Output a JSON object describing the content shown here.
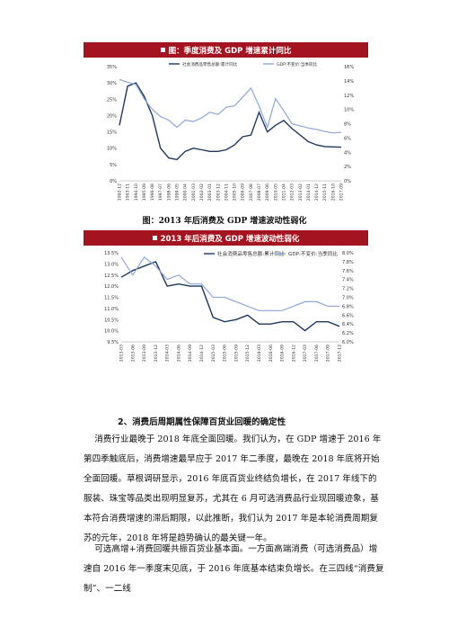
{
  "chart_data": [
    {
      "type": "line",
      "title": "图：季度消费及 GDP 增速累计同比",
      "x": [
        "1992-12",
        "1993-11",
        "1994-10",
        "1995-09",
        "1996-08",
        "1997-07",
        "1998-06",
        "1999-05",
        "2000-04",
        "2001-03",
        "2002-02",
        "2003-01",
        "2003-12",
        "2004-11",
        "2005-10",
        "2006-09",
        "2007-08",
        "2008-07",
        "2009-06",
        "2010-05",
        "2011-04",
        "2012-03",
        "2013-02",
        "2014-01",
        "2014-12",
        "2015-11",
        "2016-10",
        "2017-09"
      ],
      "x_ticks": [
        "1992-12",
        "1993-11",
        "1994-10",
        "1995-09",
        "1996-08",
        "1997-07",
        "1998-06",
        "1999-05",
        "2000-04",
        "2001-03",
        "2002-02",
        "2003-01",
        "2003-12",
        "2004-11",
        "2005-10",
        "2006-09",
        "2007-08",
        "2008-07",
        "2009-06",
        "2010-05",
        "2011-04",
        "2012-03",
        "2013-02",
        "2014-01",
        "2014-12",
        "2015-11",
        "2016-10",
        "2017-09"
      ],
      "y_left_ticks": [
        "35%",
        "30%",
        "25%",
        "20%",
        "15%",
        "10%",
        "5%",
        "0%"
      ],
      "y_right_ticks": [
        "16%",
        "14%",
        "12%",
        "10%",
        "8%",
        "6%",
        "4%",
        "2%",
        "0%"
      ],
      "ylim_left": [
        0,
        35
      ],
      "ylim_right": [
        0,
        16
      ],
      "legend_position": "top",
      "series": [
        {
          "name": "社会消费品零售总额:累计同比",
          "axis": "left",
          "color": "#1f3864",
          "values": [
            17,
            29,
            30,
            26,
            20,
            10,
            7,
            6.5,
            9,
            10,
            9.5,
            9,
            9,
            9.5,
            11,
            13.5,
            14,
            21,
            15,
            17,
            18.5,
            16,
            14,
            12,
            11,
            10.5,
            10.4,
            10.3
          ]
        },
        {
          "name": "GDP:不变价:当季同比",
          "axis": "right",
          "color": "#8fa8d9",
          "values": [
            14.2,
            13.8,
            13.5,
            11.5,
            10,
            9,
            8.5,
            7.5,
            8.5,
            8.3,
            8.8,
            9.6,
            9.3,
            10.3,
            10.5,
            11.7,
            13,
            10.5,
            7.5,
            11.5,
            9.8,
            8,
            7.7,
            7.4,
            7.2,
            6.9,
            6.7,
            6.8
          ]
        }
      ]
    },
    {
      "type": "line",
      "title": "2013 年后消费及 GDP 增速波动性弱化",
      "x": [
        "2013-03",
        "2013-06",
        "2013-09",
        "2013-12",
        "2014-03",
        "2014-06",
        "2014-09",
        "2014-12",
        "2015-03",
        "2015-06",
        "2015-09",
        "2015-12",
        "2016-03",
        "2016-06",
        "2016-09",
        "2016-12",
        "2017-03",
        "2017-06",
        "2017-09",
        "2017-12"
      ],
      "y_left_ticks": [
        "13.5%",
        "13.0%",
        "12.5%",
        "12.0%",
        "11.5%",
        "11.0%",
        "10.5%",
        "10.0%",
        "9.5%"
      ],
      "y_right_ticks": [
        "8.0%",
        "7.8%",
        "7.6%",
        "7.4%",
        "7.2%",
        "7.0%",
        "6.8%",
        "6.6%",
        "6.4%",
        "6.2%",
        "6.0%"
      ],
      "ylim_left": [
        9.5,
        13.5
      ],
      "ylim_right": [
        6.0,
        8.0
      ],
      "legend_position": "top",
      "series": [
        {
          "name": "社会消费品零售总额:累计同比",
          "axis": "left",
          "color": "#1f3864",
          "values": [
            12.4,
            12.7,
            12.9,
            13.1,
            12.0,
            12.1,
            12.0,
            12.0,
            10.6,
            10.4,
            10.5,
            10.7,
            10.3,
            10.3,
            10.4,
            10.4,
            10.0,
            10.4,
            10.4,
            10.2
          ]
        },
        {
          "name": "GDP:不变价:当季同比",
          "axis": "right",
          "color": "#8fa8d9",
          "values": [
            7.9,
            7.5,
            7.9,
            7.7,
            7.4,
            7.5,
            7.3,
            7.3,
            7.0,
            7.0,
            6.9,
            6.8,
            6.7,
            6.7,
            6.7,
            6.8,
            6.9,
            6.9,
            6.8,
            6.8
          ]
        }
      ]
    }
  ],
  "captions": {
    "fig1": "图：2013 年后消费及 GDP 增速波动性弱化"
  },
  "section_title": "2、消费后周期属性保障百货业回暖的确定性",
  "para1": "    消费行业最晚于 2018 年底全面回暖。我们认为，在 GDP 增速于 2016 年第四季触底后，消费增速最早应于 2017 年二季度，最晚在 2018 年底将开始全面回暖。草根调研显示，2016 年底百货业终结负增长，在 2017 年线下的服装、珠宝等品类出现明显复苏，尤其在 6 月可选消费品行业现回暖迹象，基本符合消费增速的滞后期限，以此推断，我们认为 2017 年是本轮消费周期复苏的元年，2018 年将是趋势确认的最关键一年。",
  "para2": "    可选高增+消费回暖共振百货业基本面。一方面高端消费（可选消费品）增速自 2016 年一季度末见底，于 2016 年底基本结束负增长。在三四线“消费复制”、一二线"
}
